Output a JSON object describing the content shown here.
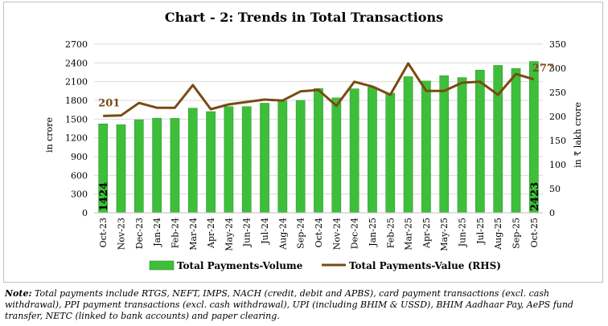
{
  "chart_data": {
    "type": "bar",
    "title": "Chart - 2: Trends in Total Transactions",
    "categories": [
      "Oct-23",
      "Nov-23",
      "Dec-23",
      "Jan-24",
      "Feb-24",
      "Mar-24",
      "Apr-24",
      "May-24",
      "Jun-24",
      "Jul-24",
      "Aug-24",
      "Sep-24",
      "Oct-24",
      "Nov-24",
      "Dec-24",
      "Jan-25",
      "Feb-25",
      "Mar-25",
      "Apr-25",
      "May-25",
      "Jun-25",
      "Jul-25",
      "Aug-25",
      "Sep-25",
      "Oct-25"
    ],
    "ylabel": "in crore",
    "y2label": "in ₹ lakh crore",
    "ylim": [
      0,
      2700
    ],
    "y2lim": [
      0,
      350
    ],
    "yticks": [
      0,
      300,
      600,
      900,
      1200,
      1500,
      1800,
      2100,
      2400,
      2700
    ],
    "y2ticks": [
      0,
      50,
      100,
      150,
      200,
      250,
      300,
      350
    ],
    "series": [
      {
        "name": "Total Payments-Volume",
        "type": "bar",
        "axis": "left",
        "color": "#3dbf3a",
        "values": [
          1424,
          1410,
          1490,
          1515,
          1512,
          1675,
          1620,
          1700,
          1700,
          1755,
          1790,
          1800,
          1990,
          1840,
          1985,
          2010,
          1915,
          2180,
          2110,
          2195,
          2165,
          2285,
          2360,
          2310,
          2423
        ]
      },
      {
        "name": "Total Payments-Value (RHS)",
        "type": "line",
        "axis": "right",
        "color": "#7a4a12",
        "values": [
          201,
          202,
          228,
          218,
          218,
          265,
          215,
          225,
          230,
          235,
          233,
          252,
          255,
          222,
          272,
          262,
          245,
          310,
          253,
          253,
          270,
          272,
          245,
          288,
          277
        ]
      }
    ],
    "data_labels": {
      "first_volume": "1424",
      "last_volume": "2423",
      "first_value": "201",
      "last_value": "277"
    },
    "legend": [
      "Total Payments-Volume",
      "Total Payments-Value (RHS)"
    ],
    "grid": true
  },
  "note": {
    "label": "Note:",
    "text": "Total payments include RTGS, NEFT, IMPS, NACH (credit, debit and APBS), card payment transactions (excl. cash withdrawal), PPI payment transactions (excl. cash withdrawal), UPI (including BHIM & USSD), BHIM Aadhaar Pay, AePS fund transfer, NETC (linked to bank accounts) and paper clearing."
  }
}
